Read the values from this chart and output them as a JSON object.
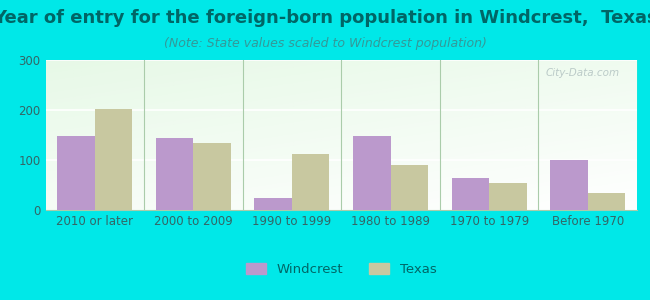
{
  "title": "Year of entry for the foreign-born population in Windcrest,  Texas",
  "subtitle": "(Note: State values scaled to Windcrest population)",
  "categories": [
    "2010 or later",
    "2000 to 2009",
    "1990 to 1999",
    "1980 to 1989",
    "1970 to 1979",
    "Before 1970"
  ],
  "windcrest_values": [
    148,
    145,
    25,
    148,
    65,
    100
  ],
  "texas_values": [
    202,
    135,
    113,
    90,
    55,
    35
  ],
  "windcrest_color": "#bb99cc",
  "texas_color": "#c8c8a0",
  "background_color": "#00e8e8",
  "title_color": "#006666",
  "subtitle_color": "#339999",
  "tick_color": "#336666",
  "ylim": [
    0,
    300
  ],
  "yticks": [
    0,
    100,
    200,
    300
  ],
  "bar_width": 0.38,
  "legend_labels": [
    "Windcrest",
    "Texas"
  ],
  "title_fontsize": 13,
  "subtitle_fontsize": 9,
  "axis_fontsize": 8.5,
  "legend_fontsize": 9.5,
  "watermark": "City-Data.com"
}
